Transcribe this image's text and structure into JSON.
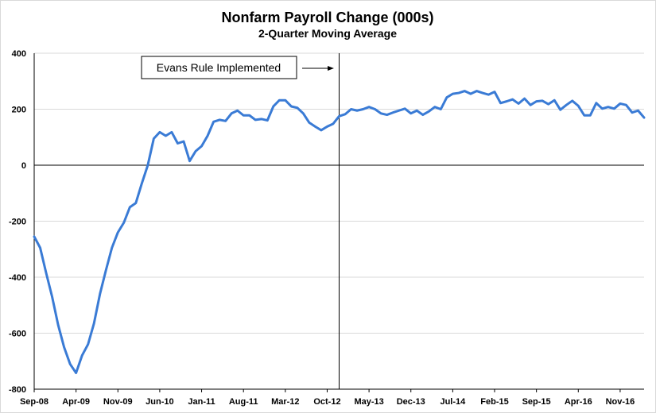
{
  "chart_data": {
    "type": "line",
    "title": "Nonfarm Payroll Change (000s)",
    "subtitle": "2-Quarter Moving Average",
    "xlabel": "",
    "ylabel": "",
    "ylim": [
      -800,
      400
    ],
    "y_ticks": [
      400,
      200,
      0,
      -200,
      -400,
      -600,
      -800
    ],
    "y_tick_labels": [
      "400",
      "200",
      "0",
      "-200",
      "-400",
      "-600",
      "-800"
    ],
    "x_tick_labels": [
      "Sep-08",
      "Apr-09",
      "Nov-09",
      "Jun-10",
      "Jan-11",
      "Aug-11",
      "Mar-12",
      "Oct-12",
      "May-13",
      "Dec-13",
      "Jul-14",
      "Feb-15",
      "Sep-15",
      "Apr-16",
      "Nov-16"
    ],
    "x_tick_every_months": 7,
    "grid": "horizontal",
    "line_color": "#3a7bd5",
    "annotation": {
      "text": "Evans Rule Implemented",
      "marker_month_index": 51
    },
    "series": [
      {
        "values": [
          -255,
          -295,
          -385,
          -470,
          -570,
          -650,
          -710,
          -742,
          -680,
          -640,
          -565,
          -460,
          -375,
          -295,
          -240,
          -205,
          -150,
          -135,
          -65,
          0,
          95,
          118,
          105,
          118,
          78,
          85,
          15,
          50,
          68,
          105,
          155,
          162,
          158,
          185,
          195,
          178,
          178,
          162,
          165,
          160,
          210,
          232,
          232,
          210,
          205,
          185,
          152,
          138,
          125,
          138,
          148,
          175,
          182,
          200,
          195,
          200,
          208,
          200,
          185,
          180,
          188,
          195,
          202,
          185,
          195,
          180,
          192,
          208,
          200,
          242,
          255,
          258,
          265,
          255,
          265,
          258,
          252,
          262,
          222,
          228,
          235,
          220,
          238,
          215,
          228,
          230,
          218,
          232,
          198,
          215,
          230,
          212,
          178,
          178,
          222,
          202,
          208,
          202,
          220,
          215,
          188,
          195,
          170
        ]
      }
    ]
  }
}
